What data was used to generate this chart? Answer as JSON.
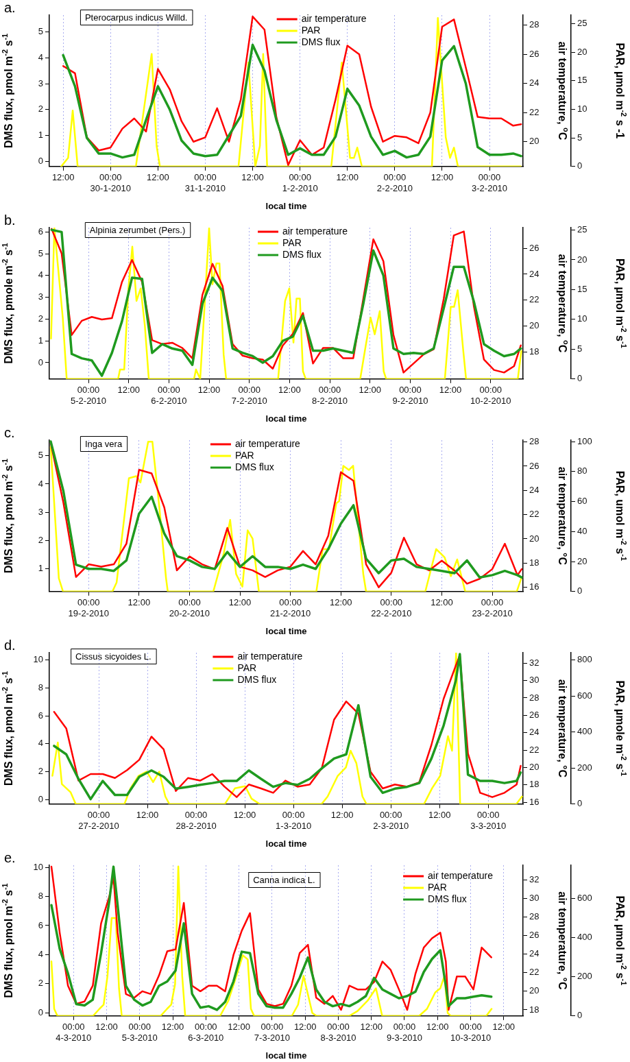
{
  "chart_data": [
    {
      "type": "line",
      "title": "a.",
      "xlabel": "local time",
      "ylabel": "DMS flux, pmol m$^{-2}$ s$^{-1}$",
      "y2label": "air temperature, $^{o}$C",
      "y3label": "PAR, µmol m$^{-2}$ s -1",
      "annotations": [
        "Pterocarpus indicus Willd."
      ],
      "legend": "top",
      "grid": "x",
      "marker": "none",
      "xlim": [
        "2010-01-29T08:30",
        "2010-02-03T08:30"
      ],
      "xticks": [
        {
          "value": "2010-01-29T12:00",
          "label": "12:00"
        },
        {
          "value": "2010-01-30T00:00",
          "label": "00:00\n30-1-2010"
        },
        {
          "value": "2010-01-30T12:00",
          "label": "12:00"
        },
        {
          "value": "2010-01-31T00:00",
          "label": "00:00\n31-1-2010"
        },
        {
          "value": "2010-01-31T12:00",
          "label": "12:00"
        },
        {
          "value": "2010-02-01T00:00",
          "label": "00:00\n1-2-2010"
        },
        {
          "value": "2010-02-01T12:00",
          "label": "12:00"
        },
        {
          "value": "2010-02-02T00:00",
          "label": "00:00\n2-2-2010"
        },
        {
          "value": "2010-02-02T12:00",
          "label": "12:00"
        },
        {
          "value": "2010-02-03T00:00",
          "label": "00:00\n3-2-2010"
        }
      ],
      "ylim": [
        -0.2,
        5.65
      ],
      "yticks": [
        0,
        1,
        2,
        3,
        4,
        5
      ],
      "y2lim": [
        18.3,
        28.7
      ],
      "y2ticks": [
        20,
        22,
        24,
        26,
        28
      ],
      "y3lim": [
        0,
        26.5
      ],
      "y3ticks": [
        0,
        5,
        10,
        15,
        20,
        25
      ],
      "x": [
        "2010-01-29T12:00",
        "2010-01-29T15:00",
        "2010-01-29T18:00",
        "2010-01-29T21:00",
        "2010-01-30T00:00",
        "2010-01-30T03:00",
        "2010-01-30T06:00",
        "2010-01-30T09:00",
        "2010-01-30T12:00",
        "2010-01-30T15:00",
        "2010-01-30T18:00",
        "2010-01-30T21:00",
        "2010-01-31T00:00",
        "2010-01-31T03:00",
        "2010-01-31T06:00",
        "2010-01-31T09:00",
        "2010-01-31T12:00",
        "2010-01-31T15:00",
        "2010-01-31T18:00",
        "2010-01-31T21:00",
        "2010-02-01T00:00",
        "2010-02-01T03:00",
        "2010-02-01T06:00",
        "2010-02-01T09:00",
        "2010-02-01T12:00",
        "2010-02-01T15:00",
        "2010-02-01T18:00",
        "2010-02-01T21:00",
        "2010-02-02T00:00",
        "2010-02-02T03:00",
        "2010-02-02T06:00",
        "2010-02-02T09:00",
        "2010-02-02T12:00",
        "2010-02-02T15:00",
        "2010-02-02T18:00",
        "2010-02-02T21:00",
        "2010-02-03T00:00",
        "2010-02-03T03:00",
        "2010-02-03T06:00",
        "2010-02-03T08:00"
      ],
      "series": [
        {
          "name": "air temperature",
          "color": "#ff0000",
          "axis": "y2",
          "values": [
            25.2,
            24.7,
            20.3,
            19.4,
            19.6,
            20.9,
            21.6,
            20.7,
            25.0,
            23.6,
            21.4,
            20.0,
            20.3,
            22.3,
            20.0,
            22.9,
            28.6,
            27.7,
            21.7,
            18.4,
            20.1,
            19.1,
            19.6,
            22.9,
            26.6,
            26.0,
            22.4,
            20.0,
            20.4,
            20.3,
            19.9,
            22.0,
            27.9,
            28.4,
            25.1,
            21.7,
            21.6,
            21.6,
            21.1,
            21.2
          ]
        },
        {
          "name": "PAR",
          "color": "#ffff00",
          "axis": "y3",
          "x": [
            "2010-01-29T11:30",
            "2010-01-29T13:15",
            "2010-01-29T14:25",
            "2010-01-29T15:40",
            "2010-01-30T06:25",
            "2010-01-30T10:25",
            "2010-01-30T11:40",
            "2010-01-30T12:30",
            "2010-01-31T08:25",
            "2010-01-31T10:55",
            "2010-01-31T12:40",
            "2010-01-31T13:50",
            "2010-01-31T14:40",
            "2010-01-31T15:40",
            "2010-02-01T07:55",
            "2010-02-01T10:35",
            "2010-02-01T12:40",
            "2010-02-01T13:40",
            "2010-02-01T14:30",
            "2010-02-01T15:40",
            "2010-02-02T09:25",
            "2010-02-02T10:55",
            "2010-02-02T12:55",
            "2010-02-02T14:00",
            "2010-02-02T15:00",
            "2010-02-02T16:00",
            "2010-02-03T07:55"
          ],
          "values": [
            0,
            1.5,
            9.8,
            0,
            0,
            19.7,
            3.6,
            0,
            0,
            18.2,
            0,
            3.6,
            19.7,
            0,
            0,
            18.2,
            1.5,
            1.5,
            3.3,
            0,
            0,
            26,
            5.1,
            1.5,
            3.3,
            0,
            0
          ]
        },
        {
          "name": "DMS flux",
          "color": "#1f9a1f",
          "values": [
            4.1,
            2.9,
            0.9,
            0.3,
            0.3,
            0.15,
            0.25,
            1.6,
            2.9,
            2.0,
            0.8,
            0.3,
            0.2,
            0.25,
            1.0,
            1.75,
            4.5,
            3.5,
            1.6,
            0.25,
            0.5,
            0.25,
            0.25,
            0.95,
            2.8,
            2.15,
            0.95,
            0.25,
            0.4,
            0.15,
            0.25,
            0.95,
            3.9,
            4.45,
            3.0,
            0.55,
            0.25,
            0.25,
            0.3,
            0.2
          ]
        }
      ]
    },
    {
      "type": "line",
      "title": "b.",
      "xlabel": "local time",
      "ylabel": "DMS flux, pmole m$^{-2}$ s$^{-1}$",
      "y2label": "air temperature, $^{o}$C",
      "y3label": "PAR, µmol m$^{-2}$ s$^{-1}$",
      "annotations": [
        "Alpinia zerumbet (Pers.)"
      ],
      "legend": "top",
      "grid": "x",
      "marker": "none",
      "xlim": [
        "2010-02-04T12:20",
        "2010-02-10T09:40"
      ],
      "xticks": [
        {
          "value": "2010-02-05T00:00",
          "label": "00:00\n5-2-2010"
        },
        {
          "value": "2010-02-05T12:00",
          "label": "12:00"
        },
        {
          "value": "2010-02-06T00:00",
          "label": "00:00\n6-2-2010"
        },
        {
          "value": "2010-02-06T12:00",
          "label": "12:00"
        },
        {
          "value": "2010-02-07T00:00",
          "label": "00:00\n7-2-2010"
        },
        {
          "value": "2010-02-07T12:00",
          "label": "12:00"
        },
        {
          "value": "2010-02-08T00:00",
          "label": "00:00\n8-2-2010"
        },
        {
          "value": "2010-02-08T12:00",
          "label": "12:00"
        },
        {
          "value": "2010-02-09T00:00",
          "label": "00:00\n9-2-2010"
        },
        {
          "value": "2010-02-09T12:00",
          "label": "12:00"
        },
        {
          "value": "2010-02-10T00:00",
          "label": "00:00\n10-2-2010"
        }
      ],
      "ylim": [
        -0.75,
        6.2
      ],
      "yticks": [
        0,
        1,
        2,
        3,
        4,
        5,
        6
      ],
      "y2lim": [
        15.9,
        27.6
      ],
      "y2ticks": [
        18,
        20,
        22,
        24,
        26
      ],
      "y3lim": [
        0,
        25.4
      ],
      "y3ticks": [
        0,
        5,
        10,
        15,
        20,
        25
      ],
      "x": [
        "2010-02-04T13:00",
        "2010-02-04T16:00",
        "2010-02-04T19:00",
        "2010-02-04T22:00",
        "2010-02-05T01:00",
        "2010-02-05T04:00",
        "2010-02-05T07:00",
        "2010-02-05T10:00",
        "2010-02-05T13:00",
        "2010-02-05T16:00",
        "2010-02-05T19:00",
        "2010-02-05T22:00",
        "2010-02-06T01:00",
        "2010-02-06T04:00",
        "2010-02-06T07:00",
        "2010-02-06T10:00",
        "2010-02-06T13:00",
        "2010-02-06T16:00",
        "2010-02-06T19:00",
        "2010-02-06T22:00",
        "2010-02-07T01:00",
        "2010-02-07T04:00",
        "2010-02-07T07:00",
        "2010-02-07T10:00",
        "2010-02-07T13:00",
        "2010-02-07T16:00",
        "2010-02-07T19:00",
        "2010-02-07T22:00",
        "2010-02-08T01:00",
        "2010-02-08T04:00",
        "2010-02-08T07:00",
        "2010-02-08T10:00",
        "2010-02-08T13:00",
        "2010-02-08T16:00",
        "2010-02-08T19:00",
        "2010-02-08T22:00",
        "2010-02-09T01:00",
        "2010-02-09T04:00",
        "2010-02-09T07:00",
        "2010-02-09T10:00",
        "2010-02-09T13:00",
        "2010-02-09T16:00",
        "2010-02-09T19:00",
        "2010-02-09T22:00",
        "2010-02-10T01:00",
        "2010-02-10T04:00",
        "2010-02-10T07:00",
        "2010-02-10T09:00"
      ],
      "series": [
        {
          "name": "air temperature",
          "color": "#ff0000",
          "axis": "y2",
          "values": [
            27.5,
            25.6,
            19.3,
            20.4,
            20.7,
            20.5,
            20.6,
            23.4,
            25.1,
            23.4,
            18.9,
            18.6,
            18.7,
            18.3,
            17.5,
            22.4,
            24.8,
            23.1,
            18.6,
            17.7,
            17.5,
            17.4,
            16.7,
            18.5,
            19.4,
            21.0,
            17.1,
            18.3,
            18.3,
            17.5,
            17.5,
            22.1,
            26.7,
            25.0,
            19.3,
            16.4,
            17.1,
            17.8,
            18.2,
            22.1,
            27.0,
            27.3,
            21.5,
            17.4,
            16.6,
            16.4,
            16.9,
            18.5
          ]
        },
        {
          "name": "PAR",
          "color": "#ffff00",
          "axis": "y3",
          "x": [
            "2010-02-04T12:50",
            "2010-02-04T13:50",
            "2010-02-04T16:20",
            "2010-02-04T17:30",
            "2010-02-05T08:50",
            "2010-02-05T09:25",
            "2010-02-05T10:40",
            "2010-02-05T11:55",
            "2010-02-05T13:05",
            "2010-02-05T14:20",
            "2010-02-05T15:35",
            "2010-02-05T16:50",
            "2010-02-05T18:00",
            "2010-02-06T07:30",
            "2010-02-06T08:05",
            "2010-02-06T09:20",
            "2010-02-06T10:35",
            "2010-02-06T12:00",
            "2010-02-06T13:00",
            "2010-02-06T14:10",
            "2010-02-06T15:05",
            "2010-02-06T16:20",
            "2010-02-06T17:05",
            "2010-02-07T08:35",
            "2010-02-07T10:40",
            "2010-02-07T11:55",
            "2010-02-07T13:10",
            "2010-02-07T14:05",
            "2010-02-07T15:05",
            "2010-02-07T16:00",
            "2010-02-07T16:50",
            "2010-02-08T09:05",
            "2010-02-08T10:40",
            "2010-02-08T12:10",
            "2010-02-08T13:25",
            "2010-02-08T14:55",
            "2010-02-08T16:05",
            "2010-02-08T16:50",
            "2010-02-09T10:20",
            "2010-02-09T12:05",
            "2010-02-09T13:05",
            "2010-02-09T14:10",
            "2010-02-09T15:50",
            "2010-02-09T16:40",
            "2010-02-10T08:05",
            "2010-02-10T09:10"
          ],
          "values": [
            6.8,
            25.3,
            10.3,
            0,
            0,
            1.6,
            1.6,
            15.2,
            22.2,
            13.1,
            15.2,
            8.9,
            0,
            0,
            1.6,
            0,
            11.7,
            25.3,
            15.9,
            19.4,
            19.4,
            4.1,
            0,
            0,
            13.1,
            15.2,
            6.1,
            13.5,
            13.5,
            1.3,
            0,
            0,
            5.4,
            10.3,
            7.5,
            11.4,
            1.3,
            0,
            0,
            12.1,
            12.1,
            14.9,
            4.7,
            0,
            0,
            4.7
          ]
        },
        {
          "name": "DMS flux",
          "color": "#1f9a1f",
          "values": [
            6.1,
            6.0,
            0.4,
            0.2,
            0.1,
            -0.6,
            0.45,
            1.9,
            3.9,
            3.85,
            0.45,
            0.85,
            0.65,
            0.55,
            -0.1,
            2.7,
            3.9,
            3.3,
            0.65,
            0.45,
            0.3,
            0,
            0.3,
            1.0,
            1.2,
            2.15,
            0.55,
            0.55,
            0.65,
            0.55,
            0.45,
            2.7,
            5.15,
            4.0,
            0.65,
            0.4,
            0.45,
            0.4,
            0.65,
            2.5,
            4.4,
            4.4,
            2.8,
            0.85,
            0.55,
            0.3,
            0.4,
            0.65
          ]
        }
      ]
    },
    {
      "type": "line",
      "title": "c.",
      "xlabel": "local time",
      "ylabel": "DMS flux, pmol m$^{-2}$ s$^{-1}$",
      "y2label": "air temperature, °C",
      "y3label": "PAR, umol m$^{-2}$ s$^{-1}$",
      "annotations": [
        "Inga vera"
      ],
      "legend": "top",
      "grid": "x",
      "marker": "none",
      "xlim": [
        "2010-02-18T14:40",
        "2010-02-23T07:20"
      ],
      "xticks": [
        {
          "value": "2010-02-19T00:00",
          "label": "00:00\n19-2-2010"
        },
        {
          "value": "2010-02-19T12:00",
          "label": "12:00"
        },
        {
          "value": "2010-02-20T00:00",
          "label": "00:00\n20-2-2010"
        },
        {
          "value": "2010-02-20T12:00",
          "label": "12:00"
        },
        {
          "value": "2010-02-21T00:00",
          "label": "00:00\n21-2-2010"
        },
        {
          "value": "2010-02-21T12:00",
          "label": "12:00"
        },
        {
          "value": "2010-02-22T00:00",
          "label": "00:00\n22-2-2010"
        },
        {
          "value": "2010-02-22T12:00",
          "label": "12:00"
        },
        {
          "value": "2010-02-23T00:00",
          "label": "00:00\n23-2-2010"
        }
      ],
      "ylim": [
        0.2,
        5.55
      ],
      "yticks": [
        1,
        2,
        3,
        4,
        5
      ],
      "y2lim": [
        15.65,
        28.15
      ],
      "y2ticks": [
        16,
        18,
        20,
        22,
        24,
        26,
        28
      ],
      "y3lim": [
        0,
        101
      ],
      "y3ticks": [
        0,
        20,
        40,
        60,
        80,
        100
      ],
      "x": [
        "2010-02-18T15:00",
        "2010-02-18T18:00",
        "2010-02-18T21:00",
        "2010-02-19T00:00",
        "2010-02-19T03:00",
        "2010-02-19T06:00",
        "2010-02-19T09:00",
        "2010-02-19T12:00",
        "2010-02-19T15:00",
        "2010-02-19T18:00",
        "2010-02-19T21:00",
        "2010-02-20T00:00",
        "2010-02-20T03:00",
        "2010-02-20T06:00",
        "2010-02-20T09:00",
        "2010-02-20T12:00",
        "2010-02-20T15:00",
        "2010-02-20T18:00",
        "2010-02-20T21:00",
        "2010-02-21T00:00",
        "2010-02-21T03:00",
        "2010-02-21T06:00",
        "2010-02-21T09:00",
        "2010-02-21T12:00",
        "2010-02-21T15:00",
        "2010-02-21T18:00",
        "2010-02-21T21:00",
        "2010-02-22T00:00",
        "2010-02-22T03:00",
        "2010-02-22T06:00",
        "2010-02-22T09:00",
        "2010-02-22T12:00",
        "2010-02-22T15:00",
        "2010-02-22T18:00",
        "2010-02-22T21:00",
        "2010-02-23T00:00",
        "2010-02-23T03:00",
        "2010-02-23T06:00",
        "2010-02-23T07:00"
      ],
      "series": [
        {
          "name": "air temperature",
          "color": "#ff0000",
          "axis": "y2",
          "values": [
            27.9,
            23.0,
            16.85,
            17.9,
            17.7,
            17.9,
            19.6,
            25.7,
            25.4,
            22.6,
            17.4,
            18.55,
            17.9,
            17.5,
            20.9,
            17.7,
            17.4,
            16.85,
            17.4,
            17.7,
            19.0,
            17.9,
            20.25,
            25.5,
            24.8,
            17.9,
            16.0,
            17.2,
            20.1,
            17.9,
            17.4,
            18.2,
            17.4,
            16.3,
            16.7,
            17.5,
            19.6,
            17.0,
            17.5
          ]
        },
        {
          "name": "PAR",
          "color": "#ffff00",
          "axis": "y3",
          "x": [
            "2010-02-18T15:00",
            "2010-02-18T16:55",
            "2010-02-18T17:55",
            "2010-02-19T05:40",
            "2010-02-19T06:40",
            "2010-02-19T09:35",
            "2010-02-19T11:20",
            "2010-02-19T12:20",
            "2010-02-19T14:10",
            "2010-02-19T15:10",
            "2010-02-19T16:50",
            "2010-02-19T18:25",
            "2010-02-19T18:50",
            "2010-02-20T05:40",
            "2010-02-20T08:10",
            "2010-02-20T09:40",
            "2010-02-20T11:05",
            "2010-02-20T12:35",
            "2010-02-20T13:50",
            "2010-02-20T15:00",
            "2010-02-20T16:30",
            "2010-02-21T06:10",
            "2010-02-21T07:40",
            "2010-02-21T09:10",
            "2010-02-21T10:55",
            "2010-02-21T11:35",
            "2010-02-21T12:35",
            "2010-02-21T13:55",
            "2010-02-21T14:55",
            "2010-02-21T16:05",
            "2010-02-21T17:20",
            "2010-02-21T18:00",
            "2010-02-22T08:05",
            "2010-02-22T10:40",
            "2010-02-22T12:40",
            "2010-02-22T14:10",
            "2010-02-22T15:40",
            "2010-02-22T17:35",
            "2010-02-23T05:50",
            "2010-02-23T06:55"
          ],
          "values": [
            96.4,
            8.9,
            0,
            0,
            6.1,
            75.6,
            77,
            72.8,
            100,
            100,
            56,
            8.9,
            0,
            0,
            25.6,
            47.8,
            11.7,
            3.3,
            40.8,
            35.3,
            0,
            0,
            28.3,
            28.3,
            58.9,
            60.3,
            83.9,
            81.1,
            83.9,
            47.8,
            11.7,
            0,
            0,
            28.3,
            22.8,
            10.3,
            21.4,
            0,
            0,
            8.9
          ]
        },
        {
          "name": "DMS flux",
          "color": "#1f9a1f",
          "values": [
            5.5,
            3.75,
            1.15,
            1.0,
            1.0,
            0.93,
            1.3,
            2.95,
            3.55,
            2.25,
            1.45,
            1.3,
            1.07,
            1.0,
            1.6,
            1.07,
            1.45,
            1.07,
            1.07,
            1.0,
            1.15,
            1.0,
            1.7,
            2.6,
            3.25,
            1.36,
            0.85,
            1.3,
            1.36,
            1.07,
            1.0,
            0.93,
            0.85,
            1.3,
            0.7,
            0.78,
            0.93,
            0.78,
            0.7
          ]
        }
      ]
    },
    {
      "type": "line",
      "title": "d.",
      "xlabel": "local time",
      "ylabel": "DMS flux, pmol m$^{-2}$ s$^{-1}$",
      "y2label": "air temperature, °C",
      "y3label": "PAR, µmole m$^{-2}$ s$^{-1}$",
      "annotations": [
        "Cissus sicyoides L."
      ],
      "legend": "top",
      "grid": "x",
      "marker": "none",
      "xlim": [
        "2010-02-26T11:50",
        "2010-03-03T08:35"
      ],
      "xticks": [
        {
          "value": "2010-02-27T00:00",
          "label": "00:00\n27-2-2010"
        },
        {
          "value": "2010-02-27T12:00",
          "label": "12:00"
        },
        {
          "value": "2010-02-28T00:00",
          "label": "00:00\n28-2-2010"
        },
        {
          "value": "2010-02-28T12:00",
          "label": "12:00"
        },
        {
          "value": "2010-03-01T00:00",
          "label": "00:00\n1-3-2010"
        },
        {
          "value": "2010-03-01T12:00",
          "label": "12:00"
        },
        {
          "value": "2010-03-02T00:00",
          "label": "00:00\n2-3-2010"
        },
        {
          "value": "2010-03-02T12:00",
          "label": "12:00"
        },
        {
          "value": "2010-03-03T00:00",
          "label": "00:00\n3-3-2010"
        }
      ],
      "ylim": [
        -0.3,
        10.5
      ],
      "yticks": [
        0,
        2,
        4,
        6,
        8,
        10
      ],
      "y2lim": [
        15.8,
        33.2
      ],
      "y2ticks": [
        16,
        18,
        20,
        22,
        24,
        26,
        28,
        30,
        32
      ],
      "y3lim": [
        0,
        840
      ],
      "y3ticks": [
        0,
        200,
        400,
        600,
        800
      ],
      "x": [
        "2010-02-26T13:00",
        "2010-02-26T16:00",
        "2010-02-26T19:00",
        "2010-02-26T22:00",
        "2010-02-27T01:00",
        "2010-02-27T04:00",
        "2010-02-27T07:00",
        "2010-02-27T10:00",
        "2010-02-27T13:00",
        "2010-02-27T16:00",
        "2010-02-27T19:00",
        "2010-02-27T22:00",
        "2010-02-28T01:00",
        "2010-02-28T04:00",
        "2010-02-28T07:00",
        "2010-02-28T10:00",
        "2010-02-28T13:00",
        "2010-02-28T16:00",
        "2010-02-28T19:00",
        "2010-02-28T22:00",
        "2010-03-01T01:00",
        "2010-03-01T04:00",
        "2010-03-01T07:00",
        "2010-03-01T10:00",
        "2010-03-01T13:00",
        "2010-03-01T16:00",
        "2010-03-01T19:00",
        "2010-03-01T22:00",
        "2010-03-02T01:00",
        "2010-03-02T04:00",
        "2010-03-02T07:00",
        "2010-03-02T10:00",
        "2010-03-02T13:00",
        "2010-03-02T16:00",
        "2010-03-02T17:00",
        "2010-03-02T19:00",
        "2010-03-02T22:00",
        "2010-03-03T01:00",
        "2010-03-03T04:00",
        "2010-03-03T07:00",
        "2010-03-03T08:00"
      ],
      "series": [
        {
          "name": "air temperature",
          "color": "#ff0000",
          "axis": "y2",
          "values": [
            26.4,
            24.5,
            18.5,
            19.25,
            19.25,
            18.8,
            19.7,
            20.9,
            23.55,
            22.1,
            17.3,
            18.8,
            18.5,
            19.25,
            17.8,
            16.6,
            18.05,
            17.6,
            17.1,
            18.5,
            17.8,
            18.05,
            19.95,
            25.5,
            27.6,
            26.2,
            19.5,
            17.6,
            18.05,
            17.8,
            18.3,
            22.6,
            27.9,
            31.7,
            32.9,
            21.6,
            17.1,
            16.6,
            17.1,
            18.05,
            20.2
          ]
        },
        {
          "name": "PAR",
          "color": "#ffff00",
          "axis": "y3",
          "x": [
            "2010-02-26T12:35",
            "2010-02-26T13:55",
            "2010-02-26T14:55",
            "2010-02-26T17:05",
            "2010-02-26T18:20",
            "2010-02-27T06:20",
            "2010-02-27T07:50",
            "2010-02-27T09:50",
            "2010-02-27T11:50",
            "2010-02-27T13:25",
            "2010-02-27T14:55",
            "2010-02-27T16:25",
            "2010-02-27T17:25",
            "2010-02-28T07:05",
            "2010-02-28T09:35",
            "2010-02-28T12:05",
            "2010-02-28T13:40",
            "2010-02-28T15:40",
            "2010-03-01T06:55",
            "2010-03-01T08:25",
            "2010-03-01T10:55",
            "2010-03-01T12:55",
            "2010-03-01T14:05",
            "2010-03-01T15:30",
            "2010-03-01T17:00",
            "2010-03-01T18:00",
            "2010-03-02T08:10",
            "2010-03-02T10:10",
            "2010-03-02T12:10",
            "2010-03-02T14:05",
            "2010-03-02T15:05",
            "2010-03-02T16:05",
            "2010-03-02T17:05",
            "2010-03-03T06:55",
            "2010-03-03T08:20"
          ],
          "values": [
            157,
            342,
            111,
            65,
            0,
            0,
            88,
            157,
            180,
            122,
            180,
            42,
            0,
            0,
            88,
            99,
            30,
            0,
            0,
            42,
            157,
            203,
            296,
            227,
            42,
            0,
            0,
            88,
            157,
            377,
            296,
            839,
            0,
            0,
            42
          ]
        },
        {
          "name": "DMS flux",
          "color": "#1f9a1f",
          "values": [
            3.85,
            3.25,
            1.5,
            0.05,
            1.35,
            0.35,
            0.35,
            1.65,
            2.1,
            1.65,
            0.8,
            0.93,
            1.07,
            1.2,
            1.35,
            1.35,
            2.1,
            1.5,
            0.93,
            1.2,
            1.07,
            1.5,
            2.25,
            2.95,
            3.25,
            6.75,
            1.65,
            0.5,
            0.8,
            0.93,
            1.2,
            2.95,
            5.3,
            8.5,
            10.4,
            1.8,
            1.35,
            1.35,
            1.2,
            1.35,
            1.95
          ]
        }
      ]
    },
    {
      "type": "line",
      "title": "e.",
      "xlabel": "local time",
      "ylabel": "DMS flux, pmol m$^{-2}$ s$^{-1}$",
      "y2label": "air temperature, °C",
      "y3label": "PAR, µmol m$^{-2}$ s$^{-1}$",
      "annotations": [
        "Canna indica L."
      ],
      "legend": "top right",
      "grid": "x",
      "marker": "none",
      "xlim": [
        "2010-03-03T15:15",
        "2010-03-10T19:00"
      ],
      "xticks": [
        {
          "value": "2010-03-04T00:00",
          "label": "00:00\n4-3-2010"
        },
        {
          "value": "2010-03-04T12:00",
          "label": "12:00"
        },
        {
          "value": "2010-03-05T00:00",
          "label": "00:00\n5-3-2010"
        },
        {
          "value": "2010-03-05T12:00",
          "label": "12:00"
        },
        {
          "value": "2010-03-06T00:00",
          "label": "00:00\n6-3-2010"
        },
        {
          "value": "2010-03-06T12:00",
          "label": "12:00"
        },
        {
          "value": "2010-03-07T00:00",
          "label": "00:00\n7-3-2010"
        },
        {
          "value": "2010-03-07T12:00",
          "label": "12:00"
        },
        {
          "value": "2010-03-08T00:00",
          "label": "00:00\n8-3-2010"
        },
        {
          "value": "2010-03-08T12:00",
          "label": "12:00"
        },
        {
          "value": "2010-03-09T00:00",
          "label": "00:00\n9-3-2010"
        },
        {
          "value": "2010-03-09T12:00",
          "label": "12:00"
        },
        {
          "value": "2010-03-10T00:00",
          "label": "00:00\n10-3-2010"
        },
        {
          "value": "2010-03-10T12:00",
          "label": "12:00"
        }
      ],
      "ylim": [
        -0.22,
        10.15
      ],
      "yticks": [
        0,
        2,
        4,
        6,
        8,
        10
      ],
      "y2lim": [
        17.35,
        33.55
      ],
      "y2ticks": [
        18,
        20,
        22,
        24,
        26,
        28,
        30,
        32
      ],
      "y3lim": [
        0,
        768
      ],
      "y3ticks": [
        0,
        200,
        400,
        600
      ],
      "x": [
        "2010-03-03T16:00",
        "2010-03-03T19:00",
        "2010-03-03T22:00",
        "2010-03-04T01:00",
        "2010-03-04T04:00",
        "2010-03-04T07:00",
        "2010-03-04T10:00",
        "2010-03-04T13:00",
        "2010-03-04T14:30",
        "2010-03-04T16:00",
        "2010-03-04T19:00",
        "2010-03-04T22:00",
        "2010-03-05T01:00",
        "2010-03-05T04:00",
        "2010-03-05T07:00",
        "2010-03-05T10:00",
        "2010-03-05T13:00",
        "2010-03-05T16:00",
        "2010-03-05T19:00",
        "2010-03-05T22:00",
        "2010-03-06T01:00",
        "2010-03-06T04:00",
        "2010-03-06T07:00",
        "2010-03-06T10:00",
        "2010-03-06T13:00",
        "2010-03-06T16:00",
        "2010-03-06T19:00",
        "2010-03-06T22:00",
        "2010-03-07T01:00",
        "2010-03-07T04:00",
        "2010-03-07T07:00",
        "2010-03-07T10:00",
        "2010-03-07T13:00",
        "2010-03-07T16:00",
        "2010-03-07T19:00",
        "2010-03-07T22:00",
        "2010-03-08T01:00",
        "2010-03-08T04:00",
        "2010-03-08T07:00",
        "2010-03-08T10:00",
        "2010-03-08T13:00",
        "2010-03-08T16:00",
        "2010-03-08T19:00",
        "2010-03-08T22:00",
        "2010-03-09T01:00",
        "2010-03-09T04:00",
        "2010-03-09T07:00",
        "2010-03-09T10:00",
        "2010-03-09T13:00",
        "2010-03-09T15:00",
        "2010-03-09T16:00",
        "2010-03-09T19:00",
        "2010-03-09T22:00",
        "2010-03-10T01:00",
        "2010-03-10T04:00",
        "2010-03-10T07:30"
      ],
      "series": [
        {
          "name": "air temperature",
          "color": "#ff0000",
          "axis": "y2",
          "values": [
            33.4,
            26.3,
            20.6,
            18.65,
            18.9,
            20.6,
            27.3,
            30.2,
            32.3,
            26.3,
            19.7,
            19.3,
            20.0,
            19.7,
            21.7,
            24.3,
            24.5,
            29.5,
            20.6,
            20.0,
            20.6,
            20.6,
            20.0,
            23.9,
            26.5,
            28.4,
            20.2,
            18.65,
            18.4,
            18.65,
            20.6,
            24.1,
            25.0,
            19.3,
            18.65,
            19.5,
            18.0,
            20.6,
            20.2,
            20.2,
            21.0,
            23.2,
            22.3,
            20.2,
            18.0,
            21.9,
            24.7,
            25.7,
            26.3,
            23.2,
            18.0,
            21.6,
            21.6,
            20.2,
            24.7,
            23.65
          ]
        },
        {
          "name": "PAR",
          "color": "#ffff00",
          "axis": "y3",
          "x": [
            "2010-03-03T16:00",
            "2010-03-03T17:00",
            "2010-03-03T18:10",
            "2010-03-04T07:05",
            "2010-03-04T09:25",
            "2010-03-04T10:55",
            "2010-03-04T12:20",
            "2010-03-04T13:50",
            "2010-03-04T15:20",
            "2010-03-04T16:30",
            "2010-03-04T17:30",
            "2010-03-05T07:35",
            "2010-03-05T09:55",
            "2010-03-05T11:25",
            "2010-03-05T12:50",
            "2010-03-05T14:00",
            "2010-03-05T15:25",
            "2010-03-05T16:30",
            "2010-03-06T05:10",
            "2010-03-06T08:10",
            "2010-03-06T11:05",
            "2010-03-06T13:25",
            "2010-03-06T15:10",
            "2010-03-06T16:20",
            "2010-03-06T17:30",
            "2010-03-07T07:10",
            "2010-03-07T09:25",
            "2010-03-07T11:25",
            "2010-03-07T12:50",
            "2010-03-07T14:35",
            "2010-03-07T16:05",
            "2010-03-08T04:00",
            "2010-03-08T07:00",
            "2010-03-08T10:40",
            "2010-03-08T13:40",
            "2010-03-08T15:55",
            "2010-03-09T05:20",
            "2010-03-09T08:10",
            "2010-03-09T11:10",
            "2010-03-09T13:00",
            "2010-03-09T14:30",
            "2010-03-09T15:40",
            "2010-03-09T16:50",
            "2010-03-10T05:40",
            "2010-03-10T07:35"
          ],
          "values": [
            278,
            36,
            0,
            0,
            36,
            57,
            204,
            499,
            499,
            141,
            0,
            0,
            36,
            57,
            162,
            762,
            204,
            0,
            0,
            78,
            204,
            309,
            288,
            36,
            0,
            0,
            57,
            204,
            120,
            15,
            0,
            0,
            25,
            78,
            141,
            0,
            0,
            36,
            120,
            141,
            204,
            15,
            0,
            0,
            36
          ]
        },
        {
          "name": "DMS flux",
          "color": "#1f9a1f",
          "values": [
            7.4,
            4.4,
            2.7,
            0.6,
            0.5,
            0.9,
            4.1,
            7.7,
            10.05,
            7.4,
            1.85,
            0.9,
            0.5,
            0.75,
            1.85,
            2.15,
            2.9,
            6.15,
            1.3,
            0.35,
            0.45,
            0.2,
            0.75,
            2.15,
            4.2,
            4.1,
            1.3,
            0.45,
            0.35,
            0.35,
            1.3,
            2.4,
            3.8,
            1.6,
            0.75,
            0.45,
            0.6,
            0.45,
            0.75,
            1.15,
            2.4,
            1.6,
            1.3,
            1.0,
            1.15,
            1.45,
            2.8,
            3.7,
            4.3,
            1.85,
            0.45,
            1.0,
            1.0,
            1.1,
            1.2,
            1.1
          ]
        }
      ]
    }
  ]
}
